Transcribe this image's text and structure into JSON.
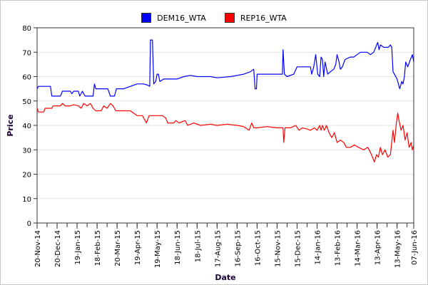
{
  "chart_data": {
    "type": "line",
    "title": "",
    "xlabel": "Date",
    "ylabel": "Price",
    "ylim": [
      0,
      80
    ],
    "yticks": [
      "0",
      "10",
      "20",
      "30",
      "40",
      "50",
      "60",
      "70",
      "80"
    ],
    "x_start": "20-Nov-14",
    "x_end_day": 565,
    "xticks": [
      {
        "day": 0,
        "label": "20-Nov-14"
      },
      {
        "day": 30,
        "label": "20-Dec-14"
      },
      {
        "day": 60,
        "label": "19-Jan-15"
      },
      {
        "day": 90,
        "label": "18-Feb-15"
      },
      {
        "day": 120,
        "label": "20-Mar-15"
      },
      {
        "day": 150,
        "label": "19-Apr-15"
      },
      {
        "day": 180,
        "label": "19-May-15"
      },
      {
        "day": 210,
        "label": "18-Jun-15"
      },
      {
        "day": 240,
        "label": "18-Jul-15"
      },
      {
        "day": 270,
        "label": "17-Aug-15"
      },
      {
        "day": 300,
        "label": "16-Sep-15"
      },
      {
        "day": 330,
        "label": "16-Oct-15"
      },
      {
        "day": 360,
        "label": "15-Nov-15"
      },
      {
        "day": 390,
        "label": "15-Dec-15"
      },
      {
        "day": 420,
        "label": "14-Jan-16"
      },
      {
        "day": 450,
        "label": "13-Feb-16"
      },
      {
        "day": 480,
        "label": "14-Mar-16"
      },
      {
        "day": 510,
        "label": "13-Apr-16"
      },
      {
        "day": 540,
        "label": "13-May-16"
      },
      {
        "day": 565,
        "label": "07-Jun-16"
      }
    ],
    "grid": true,
    "legend_position": "top-center",
    "series": [
      {
        "name": "DEM16_WTA",
        "color": "#0000ff",
        "points": [
          [
            0,
            55
          ],
          [
            2,
            56
          ],
          [
            20,
            56
          ],
          [
            22,
            52
          ],
          [
            35,
            52
          ],
          [
            38,
            54
          ],
          [
            50,
            54
          ],
          [
            52,
            53
          ],
          [
            55,
            54
          ],
          [
            62,
            54
          ],
          [
            64,
            52
          ],
          [
            68,
            54
          ],
          [
            72,
            52
          ],
          [
            80,
            52
          ],
          [
            84,
            52
          ],
          [
            86,
            57
          ],
          [
            88,
            55
          ],
          [
            100,
            55
          ],
          [
            106,
            55
          ],
          [
            110,
            52
          ],
          [
            116,
            52
          ],
          [
            119,
            55
          ],
          [
            130,
            55
          ],
          [
            140,
            56
          ],
          [
            150,
            57
          ],
          [
            160,
            57
          ],
          [
            166,
            56.5
          ],
          [
            169,
            56
          ],
          [
            170,
            75
          ],
          [
            173,
            75
          ],
          [
            175,
            57
          ],
          [
            178,
            58
          ],
          [
            180,
            61
          ],
          [
            182,
            61
          ],
          [
            184,
            58
          ],
          [
            190,
            59
          ],
          [
            200,
            59
          ],
          [
            210,
            59
          ],
          [
            220,
            60
          ],
          [
            230,
            60.5
          ],
          [
            240,
            60
          ],
          [
            260,
            60
          ],
          [
            270,
            59.5
          ],
          [
            290,
            60
          ],
          [
            300,
            60.5
          ],
          [
            310,
            61
          ],
          [
            320,
            62
          ],
          [
            325,
            63
          ],
          [
            327,
            55
          ],
          [
            329,
            55
          ],
          [
            330,
            61
          ],
          [
            340,
            61
          ],
          [
            355,
            61
          ],
          [
            368,
            61
          ],
          [
            369,
            71
          ],
          [
            371,
            61
          ],
          [
            375,
            60
          ],
          [
            385,
            61
          ],
          [
            390,
            64
          ],
          [
            405,
            64
          ],
          [
            410,
            64
          ],
          [
            412,
            61
          ],
          [
            415,
            64
          ],
          [
            418,
            69
          ],
          [
            421,
            61
          ],
          [
            424,
            60
          ],
          [
            426,
            68
          ],
          [
            428,
            67
          ],
          [
            430,
            60
          ],
          [
            432,
            66
          ],
          [
            436,
            61
          ],
          [
            440,
            62
          ],
          [
            445,
            63
          ],
          [
            448,
            65
          ],
          [
            450,
            69
          ],
          [
            453,
            66
          ],
          [
            455,
            63
          ],
          [
            458,
            64
          ],
          [
            462,
            67
          ],
          [
            470,
            68
          ],
          [
            475,
            68
          ],
          [
            480,
            69
          ],
          [
            485,
            70
          ],
          [
            495,
            70
          ],
          [
            500,
            69
          ],
          [
            505,
            70
          ],
          [
            511,
            74
          ],
          [
            513,
            71
          ],
          [
            515,
            73
          ],
          [
            520,
            72
          ],
          [
            527,
            72
          ],
          [
            530,
            73
          ],
          [
            532,
            72
          ],
          [
            534,
            62
          ],
          [
            536,
            61
          ],
          [
            540,
            59
          ],
          [
            544,
            55
          ],
          [
            547,
            58
          ],
          [
            549,
            57
          ],
          [
            551,
            60
          ],
          [
            553,
            66
          ],
          [
            556,
            64
          ],
          [
            560,
            67
          ],
          [
            563,
            69
          ],
          [
            565,
            66
          ]
        ]
      },
      {
        "name": "REP16_WTA",
        "color": "#ff0000",
        "points": [
          [
            0,
            47
          ],
          [
            2,
            45.5
          ],
          [
            10,
            45.5
          ],
          [
            12,
            47
          ],
          [
            22,
            47
          ],
          [
            24,
            48
          ],
          [
            35,
            48
          ],
          [
            38,
            49
          ],
          [
            42,
            48
          ],
          [
            50,
            48
          ],
          [
            55,
            48.5
          ],
          [
            62,
            48
          ],
          [
            66,
            47
          ],
          [
            70,
            49
          ],
          [
            75,
            48
          ],
          [
            80,
            49
          ],
          [
            84,
            47
          ],
          [
            88,
            46
          ],
          [
            96,
            46
          ],
          [
            100,
            48
          ],
          [
            105,
            47
          ],
          [
            110,
            49
          ],
          [
            114,
            48
          ],
          [
            118,
            46
          ],
          [
            130,
            46
          ],
          [
            140,
            46
          ],
          [
            145,
            45
          ],
          [
            150,
            44
          ],
          [
            158,
            44
          ],
          [
            162,
            42
          ],
          [
            164,
            41
          ],
          [
            168,
            44
          ],
          [
            180,
            44
          ],
          [
            188,
            44
          ],
          [
            193,
            43
          ],
          [
            196,
            41
          ],
          [
            205,
            41
          ],
          [
            208,
            42
          ],
          [
            213,
            41
          ],
          [
            222,
            42
          ],
          [
            226,
            40
          ],
          [
            235,
            41
          ],
          [
            245,
            40
          ],
          [
            260,
            40.5
          ],
          [
            270,
            40
          ],
          [
            285,
            40.5
          ],
          [
            300,
            40
          ],
          [
            310,
            39.5
          ],
          [
            318,
            38
          ],
          [
            322,
            41
          ],
          [
            325,
            39
          ],
          [
            330,
            39
          ],
          [
            345,
            39.5
          ],
          [
            360,
            39
          ],
          [
            369,
            39
          ],
          [
            370,
            33
          ],
          [
            372,
            39
          ],
          [
            380,
            39
          ],
          [
            388,
            40
          ],
          [
            393,
            38
          ],
          [
            398,
            39
          ],
          [
            405,
            38.5
          ],
          [
            410,
            38
          ],
          [
            416,
            39
          ],
          [
            420,
            38
          ],
          [
            424,
            40
          ],
          [
            426,
            38
          ],
          [
            428,
            40
          ],
          [
            431,
            38
          ],
          [
            434,
            40
          ],
          [
            438,
            37
          ],
          [
            442,
            35
          ],
          [
            446,
            37
          ],
          [
            450,
            33
          ],
          [
            455,
            34
          ],
          [
            460,
            33
          ],
          [
            464,
            31
          ],
          [
            470,
            31
          ],
          [
            476,
            32
          ],
          [
            482,
            31
          ],
          [
            490,
            30
          ],
          [
            496,
            31
          ],
          [
            500,
            29
          ],
          [
            503,
            27
          ],
          [
            506,
            25
          ],
          [
            509,
            28
          ],
          [
            512,
            27
          ],
          [
            515,
            31
          ],
          [
            518,
            28
          ],
          [
            522,
            30
          ],
          [
            526,
            27
          ],
          [
            530,
            28
          ],
          [
            534,
            38
          ],
          [
            536,
            33
          ],
          [
            539,
            41
          ],
          [
            541,
            45
          ],
          [
            543,
            42
          ],
          [
            546,
            38
          ],
          [
            549,
            40
          ],
          [
            552,
            34
          ],
          [
            555,
            37
          ],
          [
            558,
            31
          ],
          [
            561,
            33
          ],
          [
            563,
            30
          ],
          [
            565,
            32
          ]
        ]
      }
    ]
  }
}
